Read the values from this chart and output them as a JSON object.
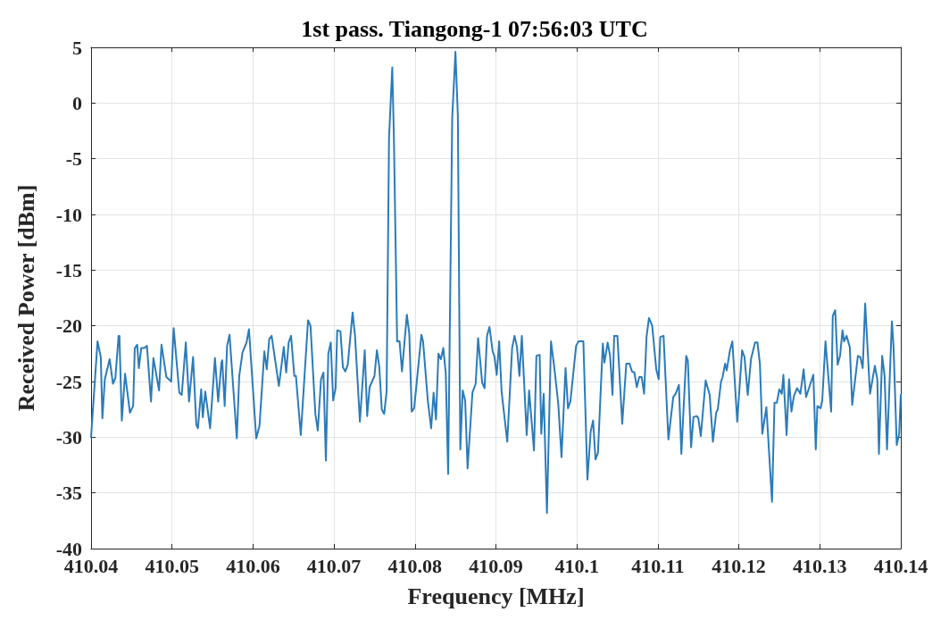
{
  "chart_data": {
    "type": "line",
    "title": "1st pass. Tiangong-1 07:56:03 UTC",
    "xlabel": "Frequency [MHz]",
    "ylabel": "Received Power [dBm]",
    "xlim": [
      410.04,
      410.14
    ],
    "xticks": [
      410.04,
      410.05,
      410.06,
      410.07,
      410.08,
      410.09,
      410.1,
      410.11,
      410.12,
      410.13,
      410.14
    ],
    "ylim": [
      -40,
      5
    ],
    "yticks": [
      -40,
      -35,
      -30,
      -25,
      -20,
      -15,
      -10,
      -5,
      0,
      5
    ],
    "grid": true,
    "marker": "none",
    "line_style": "solid",
    "series": [
      {
        "color": "#2b7bba",
        "x": [
          410.04,
          410.0408,
          410.0412,
          410.0414,
          410.0417,
          410.0423,
          410.0427,
          410.043,
          410.0434,
          410.0435,
          410.0438,
          410.0442,
          410.0448,
          410.0452,
          410.0454,
          410.0457,
          410.0459,
          410.0462,
          410.0466,
          410.0469,
          410.0474,
          410.0477,
          410.0484,
          410.0487,
          410.0493,
          410.0499,
          410.0502,
          410.0509,
          410.0512,
          410.0517,
          410.0521,
          410.0526,
          410.053,
          410.0532,
          410.0536,
          410.0538,
          410.0541,
          410.0547,
          410.0553,
          410.0557,
          410.0561,
          410.0562,
          410.0565,
          410.0568,
          410.0571,
          410.058,
          410.0583,
          410.0587,
          410.0592,
          410.0595,
          410.0604,
          410.0608,
          410.0614,
          410.0617,
          410.062,
          410.0623,
          410.0632,
          410.0638,
          410.0641,
          410.0644,
          410.0647,
          410.0651,
          410.0653,
          410.0659,
          410.0668,
          410.0671,
          410.0677,
          410.068,
          410.0684,
          410.0687,
          410.069,
          410.0693,
          410.0696,
          410.0699,
          410.0702,
          410.0704,
          410.0708,
          410.0711,
          410.0714,
          410.0717,
          410.0723,
          410.0726,
          410.0732,
          410.0738,
          410.0741,
          410.0744,
          410.075,
          410.0753,
          410.0756,
          410.0759,
          410.0762,
          410.0765,
          410.0768,
          410.0772,
          410.0774,
          410.0778,
          410.0781,
          410.0784,
          410.079,
          410.0793,
          410.0796,
          410.0799,
          410.0808,
          410.081,
          410.0816,
          410.082,
          410.0823,
          410.0826,
          410.0829,
          410.0832,
          410.0835,
          410.0838,
          410.0841,
          410.0846,
          410.085,
          410.0853,
          410.0856,
          410.0859,
          410.0862,
          410.0865,
          410.0871,
          410.0875,
          410.0878,
          410.0883,
          410.0886,
          410.0889,
          410.0892,
          410.0896,
          410.0898,
          410.0901,
          410.0904,
          410.0907,
          410.0914,
          410.092,
          410.0923,
          410.0926,
          410.0929,
          410.0932,
          410.0938,
          410.0941,
          410.0947,
          410.095,
          410.0954,
          410.0956,
          410.0959,
          410.0963,
          410.0968,
          410.0972,
          410.0977,
          410.0981,
          410.0986,
          410.0989,
          410.0992,
          410.0999,
          410.1002,
          410.1005,
          410.1008,
          410.1013,
          410.1017,
          410.102,
          410.1023,
          410.1026,
          410.1032,
          410.1034,
          410.1038,
          410.1041,
          410.1044,
          410.1046,
          410.105,
          410.1056,
          410.1061,
          410.1065,
          410.1068,
          410.1071,
          410.1074,
          410.1077,
          410.108,
          410.1083,
          410.1086,
          410.1089,
          410.1093,
          410.1098,
          410.1101,
          410.1103,
          410.1107,
          410.1113,
          410.1119,
          410.1122,
          410.1126,
          410.1129,
          410.1135,
          410.1137,
          410.1141,
          410.1144,
          410.1148,
          410.115,
          410.1153,
          410.1159,
          410.1164,
          410.1168,
          410.1172,
          410.1174,
          410.1178,
          410.118,
          410.1183,
          410.1185,
          410.1189,
          410.1192,
          410.1198,
          410.1204,
          410.1207,
          410.1211,
          410.1215,
          410.122,
          410.1223,
          410.1226,
          410.1229,
          410.1234,
          410.1241,
          410.1244,
          410.1247,
          410.125,
          410.1253,
          410.1255,
          410.1259,
          410.1262,
          410.1265,
          410.1268,
          410.1272,
          410.1276,
          410.128,
          410.1283,
          410.1292,
          410.1295,
          410.1297,
          410.1301,
          410.1303,
          410.1307,
          410.1314,
          410.1316,
          410.1319,
          410.1322,
          410.1325,
          410.1328,
          410.133,
          410.1333,
          410.1337,
          410.134,
          410.1347,
          410.135,
          410.1353,
          410.1356,
          410.1362,
          410.1368,
          410.1371,
          410.1373,
          410.1377,
          410.138,
          410.1383,
          410.1389,
          410.1391,
          410.1395,
          410.1398,
          410.14
        ],
        "values": [
          -30.0,
          -21.4,
          -22.8,
          -28.3,
          -24.8,
          -23.0,
          -25.2,
          -24.7,
          -20.9,
          -20.9,
          -28.5,
          -24.3,
          -27.8,
          -27.2,
          -22.0,
          -21.7,
          -23.8,
          -22.0,
          -22.0,
          -21.8,
          -26.8,
          -22.9,
          -25.8,
          -21.7,
          -24.6,
          -25.0,
          -20.2,
          -26.0,
          -26.2,
          -21.5,
          -26.8,
          -22.8,
          -28.9,
          -29.2,
          -25.7,
          -28.2,
          -25.9,
          -29.2,
          -22.9,
          -26.8,
          -23.3,
          -23.1,
          -27.2,
          -21.8,
          -20.8,
          -30.1,
          -24.5,
          -22.4,
          -21.5,
          -20.3,
          -30.1,
          -29.0,
          -22.3,
          -23.9,
          -21.2,
          -20.9,
          -25.4,
          -21.9,
          -24.2,
          -21.5,
          -20.9,
          -24.5,
          -24.5,
          -29.8,
          -19.5,
          -20.0,
          -27.9,
          -29.4,
          -24.8,
          -24.2,
          -32.1,
          -22.5,
          -21.5,
          -26.7,
          -25.6,
          -20.4,
          -20.5,
          -23.7,
          -24.1,
          -23.5,
          -18.8,
          -20.9,
          -28.6,
          -22.2,
          -28.1,
          -25.5,
          -24.5,
          -22.2,
          -23.7,
          -27.5,
          -27.9,
          -25.9,
          -3.1,
          3.2,
          -3.1,
          -21.4,
          -21.4,
          -24.1,
          -19.0,
          -20.7,
          -27.7,
          -27.4,
          -20.8,
          -21.4,
          -26.8,
          -29.2,
          -26.0,
          -28.4,
          -22.5,
          -23.0,
          -22.0,
          -24.2,
          -33.3,
          -1.4,
          4.6,
          -1.2,
          -31.1,
          -25.8,
          -26.7,
          -32.8,
          -26.0,
          -25.2,
          -21.1,
          -25.1,
          -25.6,
          -20.9,
          -20.1,
          -22.3,
          -22.7,
          -24.4,
          -21.4,
          -25.9,
          -30.4,
          -22.0,
          -20.9,
          -21.9,
          -24.5,
          -20.9,
          -29.8,
          -25.8,
          -31.2,
          -22.7,
          -22.6,
          -29.7,
          -26.1,
          -36.8,
          -21.4,
          -23.7,
          -27.0,
          -31.8,
          -23.8,
          -27.4,
          -26.8,
          -21.8,
          -21.4,
          -21.4,
          -21.4,
          -33.8,
          -29.5,
          -28.5,
          -32.0,
          -31.4,
          -21.6,
          -23.3,
          -21.5,
          -22.7,
          -26.2,
          -20.9,
          -20.9,
          -28.8,
          -23.4,
          -23.4,
          -24.1,
          -24.2,
          -25.5,
          -24.6,
          -24.6,
          -26.1,
          -21.0,
          -19.3,
          -20.0,
          -23.9,
          -24.8,
          -21.0,
          -20.9,
          -30.2,
          -26.4,
          -26.1,
          -25.3,
          -31.5,
          -22.7,
          -23.1,
          -30.9,
          -28.2,
          -28.1,
          -28.3,
          -29.9,
          -24.9,
          -26.2,
          -30.4,
          -27.8,
          -27.5,
          -25.0,
          -24.6,
          -23.4,
          -24.0,
          -22.2,
          -21.4,
          -28.6,
          -22.2,
          -22.8,
          -26.2,
          -23.0,
          -21.5,
          -21.5,
          -23.4,
          -29.7,
          -27.3,
          -35.8,
          -26.9,
          -26.9,
          -25.7,
          -26.1,
          -24.4,
          -29.8,
          -24.8,
          -27.7,
          -26.3,
          -25.6,
          -26.1,
          -23.9,
          -26.4,
          -24.4,
          -31.1,
          -27.2,
          -27.4,
          -26.7,
          -21.4,
          -27.7,
          -19.1,
          -18.6,
          -23.5,
          -22.7,
          -20.4,
          -21.4,
          -20.9,
          -21.9,
          -27.1,
          -22.7,
          -22.8,
          -23.8,
          -18.0,
          -26.1,
          -23.6,
          -24.8,
          -31.5,
          -22.7,
          -24.5,
          -31.1,
          -19.6,
          -21.8,
          -30.7,
          -29.7,
          -26.2
        ]
      }
    ]
  }
}
